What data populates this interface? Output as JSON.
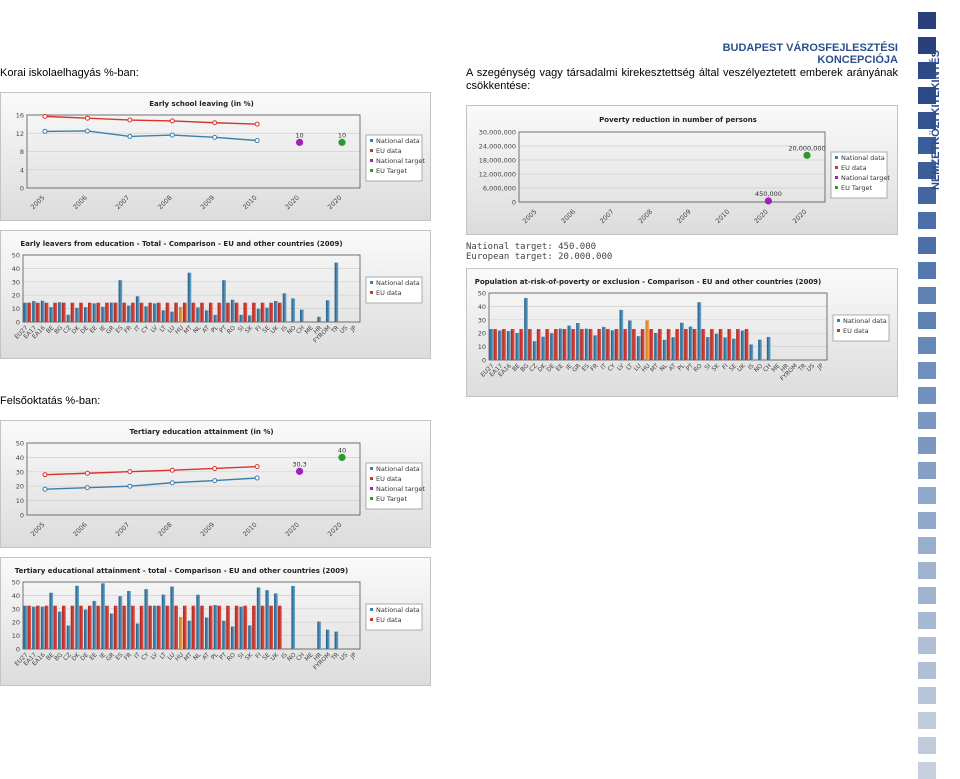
{
  "header": {
    "doc_title": "BUDAPEST VÁROSFEJLESZTÉSI KONCEPCIÓJA",
    "side_label": "NEMZETKÖZI KITEKINTÉS"
  },
  "sections": {
    "early_school": "Korai iskolaelhagyás %-ban:",
    "poverty": "A szegénység vagy társadalmi kirekesztettség által veszélyeztetett emberek arányának csökkentése:",
    "tertiary": "Felsőoktatás %-ban:"
  },
  "poverty_targets": {
    "national": "National target: 450.000",
    "european": "European target: 20.000.000"
  },
  "colors": {
    "national": "#3a80ab",
    "eu": "#d9342a",
    "national_target": "#a020c0",
    "eu_target": "#2a9a2a",
    "accent": "#2b4f8c"
  },
  "chart_data": [
    {
      "type": "line",
      "title": "Early school leaving (in %)",
      "x": [
        "2005",
        "2006",
        "2007",
        "2008",
        "2009",
        "2010",
        "2020",
        "2020"
      ],
      "ylim": [
        0,
        16
      ],
      "yticks": [
        0,
        4,
        8,
        12,
        16
      ],
      "series": [
        {
          "name": "National data",
          "values": [
            12.4,
            12.5,
            11.3,
            11.6,
            11.1,
            10.4,
            null,
            null
          ]
        },
        {
          "name": "EU data",
          "values": [
            15.7,
            15.3,
            14.9,
            14.7,
            14.3,
            14.0,
            null,
            null
          ]
        },
        {
          "name": "National target",
          "values": [
            null,
            null,
            null,
            null,
            null,
            null,
            10,
            null
          ]
        },
        {
          "name": "EU Target",
          "values": [
            null,
            null,
            null,
            null,
            null,
            null,
            null,
            10
          ]
        }
      ],
      "point_labels": [
        "10",
        "10"
      ],
      "legend": [
        "National data",
        "EU data",
        "National target",
        "EU Target"
      ],
      "grid": true,
      "legend_position": "right"
    },
    {
      "type": "bar",
      "title": "Early leavers from education - Total - Comparison - EU and other countries (2009)",
      "categories": [
        "EU27",
        "EA17",
        "EA16",
        "BE",
        "BG",
        "CZ",
        "DK",
        "DE",
        "EE",
        "IE",
        "GR",
        "ES",
        "FR",
        "IT",
        "CY",
        "LV",
        "LT",
        "LU",
        "HU",
        "MT",
        "NL",
        "AT",
        "PL",
        "PT",
        "RO",
        "SI",
        "SK",
        "FI",
        "SE",
        "UK",
        "IS",
        "NO",
        "CH",
        "ME",
        "HR",
        "FYROM",
        "TR",
        "US",
        "JP"
      ],
      "ylim": [
        0,
        50
      ],
      "yticks": [
        0,
        10,
        20,
        30,
        40,
        50
      ],
      "series": [
        {
          "name": "National data",
          "values": [
            14.4,
            15.6,
            15.9,
            11.1,
            14.7,
            5.4,
            10.6,
            11.1,
            13.9,
            11.3,
            14.5,
            31.2,
            12.3,
            19.2,
            11.7,
            13.9,
            8.7,
            7.7,
            11.2,
            36.8,
            10.9,
            8.7,
            5.3,
            31.2,
            16.6,
            5.3,
            4.9,
            9.9,
            10.7,
            15.7,
            21.4,
            17.6,
            9.2,
            null,
            3.9,
            16.2,
            44.3,
            null,
            null
          ]
        },
        {
          "name": "EU data",
          "values": [
            14.4,
            14.4,
            14.4,
            14.4,
            14.4,
            14.4,
            14.4,
            14.4,
            14.4,
            14.4,
            14.4,
            14.4,
            14.4,
            14.4,
            14.4,
            14.4,
            14.4,
            14.4,
            14.4,
            14.4,
            14.4,
            14.4,
            14.4,
            14.4,
            14.4,
            14.4,
            14.4,
            14.4,
            14.4,
            14.4,
            null,
            null,
            null,
            null,
            null,
            null,
            null,
            null,
            null
          ]
        }
      ],
      "highlight": "HU",
      "legend": [
        "National data",
        "EU data"
      ],
      "grid": true,
      "legend_position": "right"
    },
    {
      "type": "line",
      "title": "Tertiary education attainment (in %)",
      "x": [
        "2005",
        "2006",
        "2007",
        "2008",
        "2009",
        "2010",
        "2020",
        "2020"
      ],
      "ylim": [
        0,
        50
      ],
      "yticks": [
        0,
        10,
        20,
        30,
        40,
        50
      ],
      "series": [
        {
          "name": "National data",
          "values": [
            17.9,
            19.0,
            20.0,
            22.4,
            23.9,
            25.7,
            null,
            null
          ]
        },
        {
          "name": "EU data",
          "values": [
            28.0,
            29.0,
            30.1,
            31.1,
            32.3,
            33.6,
            null,
            null
          ]
        },
        {
          "name": "National target",
          "values": [
            null,
            null,
            null,
            null,
            null,
            null,
            30.3,
            null
          ]
        },
        {
          "name": "EU Target",
          "values": [
            null,
            null,
            null,
            null,
            null,
            null,
            null,
            40
          ]
        }
      ],
      "point_labels": [
        "30,3",
        "40"
      ],
      "legend": [
        "National data",
        "EU data",
        "National target",
        "EU Target"
      ],
      "grid": true,
      "legend_position": "right"
    },
    {
      "type": "bar",
      "title": "Tertiary educational attainment - total - Comparison - EU and other countries (2009)",
      "categories": [
        "EU27",
        "EA17",
        "EA16",
        "BE",
        "BG",
        "CZ",
        "DK",
        "DE",
        "EE",
        "IE",
        "GR",
        "ES",
        "FR",
        "IT",
        "CY",
        "LV",
        "LT",
        "LU",
        "HU",
        "MT",
        "NL",
        "AT",
        "PL",
        "PT",
        "RO",
        "SI",
        "SK",
        "FI",
        "SE",
        "UK",
        "IS",
        "NO",
        "CH",
        "ME",
        "HR",
        "FYROM",
        "TR",
        "US",
        "JP"
      ],
      "ylim": [
        0,
        50
      ],
      "yticks": [
        0,
        10,
        20,
        30,
        40,
        50
      ],
      "series": [
        {
          "name": "National data",
          "values": [
            32.3,
            31.6,
            31.6,
            42.0,
            27.9,
            17.5,
            47.2,
            29.4,
            35.9,
            49.0,
            26.5,
            39.4,
            43.3,
            19.0,
            44.7,
            32.3,
            40.6,
            46.6,
            23.9,
            21.1,
            40.5,
            23.5,
            32.8,
            21.1,
            16.8,
            31.6,
            17.6,
            45.9,
            43.9,
            41.5,
            null,
            47.0,
            null,
            null,
            20.5,
            14.4,
            13.0,
            null,
            null
          ]
        },
        {
          "name": "EU data",
          "values": [
            32.3,
            32.3,
            32.3,
            32.3,
            32.3,
            32.3,
            32.3,
            32.3,
            32.3,
            32.3,
            32.3,
            32.3,
            32.3,
            32.3,
            32.3,
            32.3,
            32.3,
            32.3,
            32.3,
            32.3,
            32.3,
            32.3,
            32.3,
            32.3,
            32.3,
            32.3,
            32.3,
            32.3,
            32.3,
            32.3,
            null,
            null,
            null,
            null,
            null,
            null,
            null,
            null,
            null
          ]
        }
      ],
      "highlight": "HU",
      "legend": [
        "National data",
        "EU data"
      ],
      "grid": true,
      "legend_position": "right"
    },
    {
      "type": "scatter",
      "title": "Poverty reduction in number of persons",
      "x": [
        "2005",
        "2006",
        "2007",
        "2008",
        "2009",
        "2010",
        "2020",
        "2020"
      ],
      "ylim": [
        0,
        30000000
      ],
      "yticks": [
        "0",
        "6,000,000",
        "12,000,000",
        "18,000,000",
        "24,000,000",
        "30,000,000"
      ],
      "series": [
        {
          "name": "National data",
          "values": []
        },
        {
          "name": "EU data",
          "values": []
        },
        {
          "name": "National target",
          "values": [
            null,
            null,
            null,
            null,
            null,
            null,
            450000,
            null
          ]
        },
        {
          "name": "EU Target",
          "values": [
            null,
            null,
            null,
            null,
            null,
            null,
            null,
            20000000
          ]
        }
      ],
      "point_labels": [
        "450,000",
        "20,000,000"
      ],
      "legend": [
        "National data",
        "EU data",
        "National target",
        "EU Target"
      ],
      "grid": true,
      "legend_position": "right"
    },
    {
      "type": "bar",
      "title": "Population at-risk-of-poverty or exclusion - Comparison - EU and other countries (2009)",
      "categories": [
        "EU27",
        "EA17",
        "EA16",
        "BE",
        "BG",
        "CZ",
        "DK",
        "DE",
        "EE",
        "IE",
        "GR",
        "ES",
        "FR",
        "IT",
        "CY",
        "LV",
        "LT",
        "LU",
        "HU",
        "MT",
        "NL",
        "AT",
        "PL",
        "PT",
        "RO",
        "SI",
        "SK",
        "FI",
        "SE",
        "UK",
        "IS",
        "NO",
        "CH",
        "ME",
        "HR",
        "FYROM",
        "TR",
        "US",
        "JP"
      ],
      "ylim": [
        0,
        50
      ],
      "yticks": [
        0,
        10,
        20,
        30,
        40,
        50
      ],
      "series": [
        {
          "name": "National data",
          "values": [
            23.1,
            22.0,
            21.6,
            20.2,
            46.2,
            14.0,
            17.4,
            20.0,
            23.4,
            25.7,
            27.6,
            23.4,
            18.4,
            24.7,
            22.2,
            37.4,
            29.5,
            17.8,
            29.6,
            20.2,
            15.1,
            17.0,
            27.8,
            24.9,
            43.1,
            17.1,
            19.6,
            16.9,
            15.9,
            22.0,
            11.6,
            15.2,
            17.2,
            null,
            null,
            null,
            null,
            null,
            null
          ]
        },
        {
          "name": "EU data",
          "values": [
            23.1,
            23.1,
            23.1,
            23.1,
            23.1,
            23.1,
            23.1,
            23.1,
            23.1,
            23.1,
            23.1,
            23.1,
            23.1,
            23.1,
            23.1,
            23.1,
            23.1,
            23.1,
            23.1,
            23.1,
            23.1,
            23.1,
            23.1,
            23.1,
            23.1,
            23.1,
            23.1,
            23.1,
            23.1,
            23.1,
            null,
            null,
            null,
            null,
            null,
            null,
            null,
            null,
            null
          ]
        }
      ],
      "highlight": "HU",
      "legend": [
        "National data",
        "EU data"
      ],
      "grid": true,
      "legend_position": "right"
    }
  ]
}
